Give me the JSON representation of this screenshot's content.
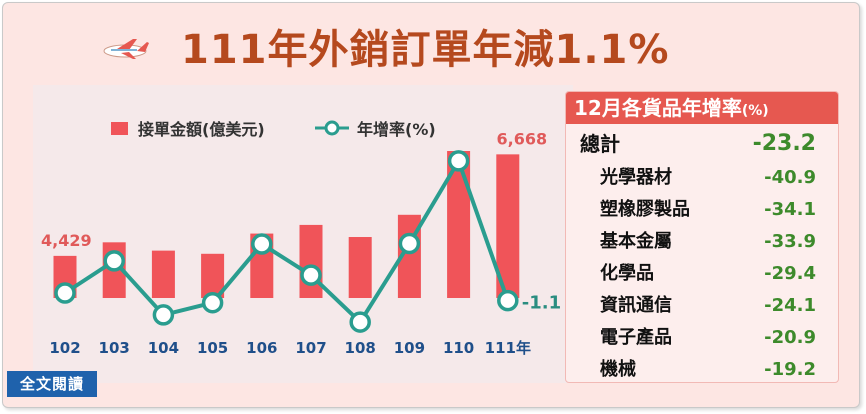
{
  "title": "111年外銷訂單年減1.1%",
  "legend": {
    "bar_label": "接單金額(億美元)",
    "line_label": "年增率(%)"
  },
  "full_text_button": "全文閱讀",
  "panel": {
    "title": "12月各貨品年增率",
    "unit": "(%)",
    "rows": [
      {
        "label": "總計",
        "value": "-23.2"
      },
      {
        "label": "光學器材",
        "value": "-40.9"
      },
      {
        "label": "塑橡膠製品",
        "value": "-34.1"
      },
      {
        "label": "基本金屬",
        "value": "-33.9"
      },
      {
        "label": "化學品",
        "value": "-29.4"
      },
      {
        "label": "資訊通信",
        "value": "-24.1"
      },
      {
        "label": "電子產品",
        "value": "-20.9"
      },
      {
        "label": "機械",
        "value": "-19.2"
      }
    ]
  },
  "chart_data": {
    "type": "bar",
    "categories": [
      "102",
      "103",
      "104",
      "105",
      "106",
      "107",
      "108",
      "109",
      "110",
      "111年"
    ],
    "series": [
      {
        "name": "接單金額(億美元)",
        "type": "bar",
        "values": [
          4429,
          4728,
          4545,
          4475,
          4921,
          5112,
          4845,
          5335,
          6742,
          6668
        ],
        "data_labels": [
          "4,429",
          "",
          "",
          "",
          "",
          "",
          "",
          "",
          "",
          "6,668"
        ]
      },
      {
        "name": "年增率(%)",
        "type": "line",
        "values": [
          0.4,
          6.7,
          -3.9,
          -1.5,
          10.0,
          3.9,
          -5.3,
          10.1,
          26.3,
          -1.1
        ],
        "data_labels": [
          "",
          "",
          "",
          "",
          "",
          "",
          "",
          "",
          "",
          "-1.1"
        ]
      }
    ],
    "colors": {
      "bar": "#f05459",
      "line": "#2a9d8f",
      "value_label": "#e05a5a",
      "line_label": "#2a8d80"
    },
    "grid": false,
    "legend_position": "top"
  }
}
